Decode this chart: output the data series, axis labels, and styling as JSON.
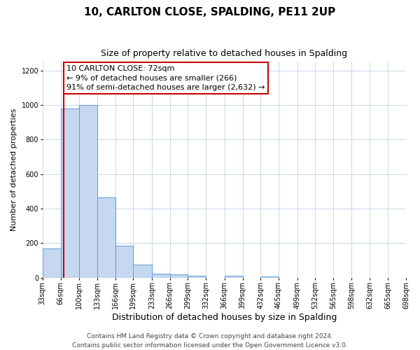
{
  "title": "10, CARLTON CLOSE, SPALDING, PE11 2UP",
  "subtitle": "Size of property relative to detached houses in Spalding",
  "xlabel": "Distribution of detached houses by size in Spalding",
  "ylabel": "Number of detached properties",
  "bin_edges": [
    33,
    66,
    100,
    133,
    166,
    199,
    233,
    266,
    299,
    332,
    366,
    399,
    432,
    465,
    499,
    532,
    565,
    598,
    632,
    665,
    698
  ],
  "bar_values": [
    170,
    980,
    1000,
    465,
    185,
    75,
    22,
    18,
    10,
    0,
    10,
    0,
    8,
    0,
    0,
    0,
    0,
    0,
    0,
    0
  ],
  "bar_color": "#c5d8f0",
  "bar_edge_color": "#5b9bd5",
  "property_line_x": 72,
  "property_line_color": "#cc0000",
  "annotation_line1": "10 CARLTON CLOSE: 72sqm",
  "annotation_line2": "← 9% of detached houses are smaller (266)",
  "annotation_line3": "91% of semi-detached houses are larger (2,632) →",
  "annotation_box_color": "#ffffff",
  "annotation_box_edge_color": "#cc0000",
  "ylim": [
    0,
    1250
  ],
  "yticks": [
    0,
    200,
    400,
    600,
    800,
    1000,
    1200
  ],
  "background_color": "#ffffff",
  "grid_color": "#c8d8e8",
  "footer_line1": "Contains HM Land Registry data © Crown copyright and database right 2024.",
  "footer_line2": "Contains public sector information licensed under the Open Government Licence v3.0.",
  "title_fontsize": 11,
  "subtitle_fontsize": 9,
  "xlabel_fontsize": 9,
  "ylabel_fontsize": 8,
  "tick_fontsize": 7,
  "annotation_fontsize": 8,
  "footer_fontsize": 6.5
}
